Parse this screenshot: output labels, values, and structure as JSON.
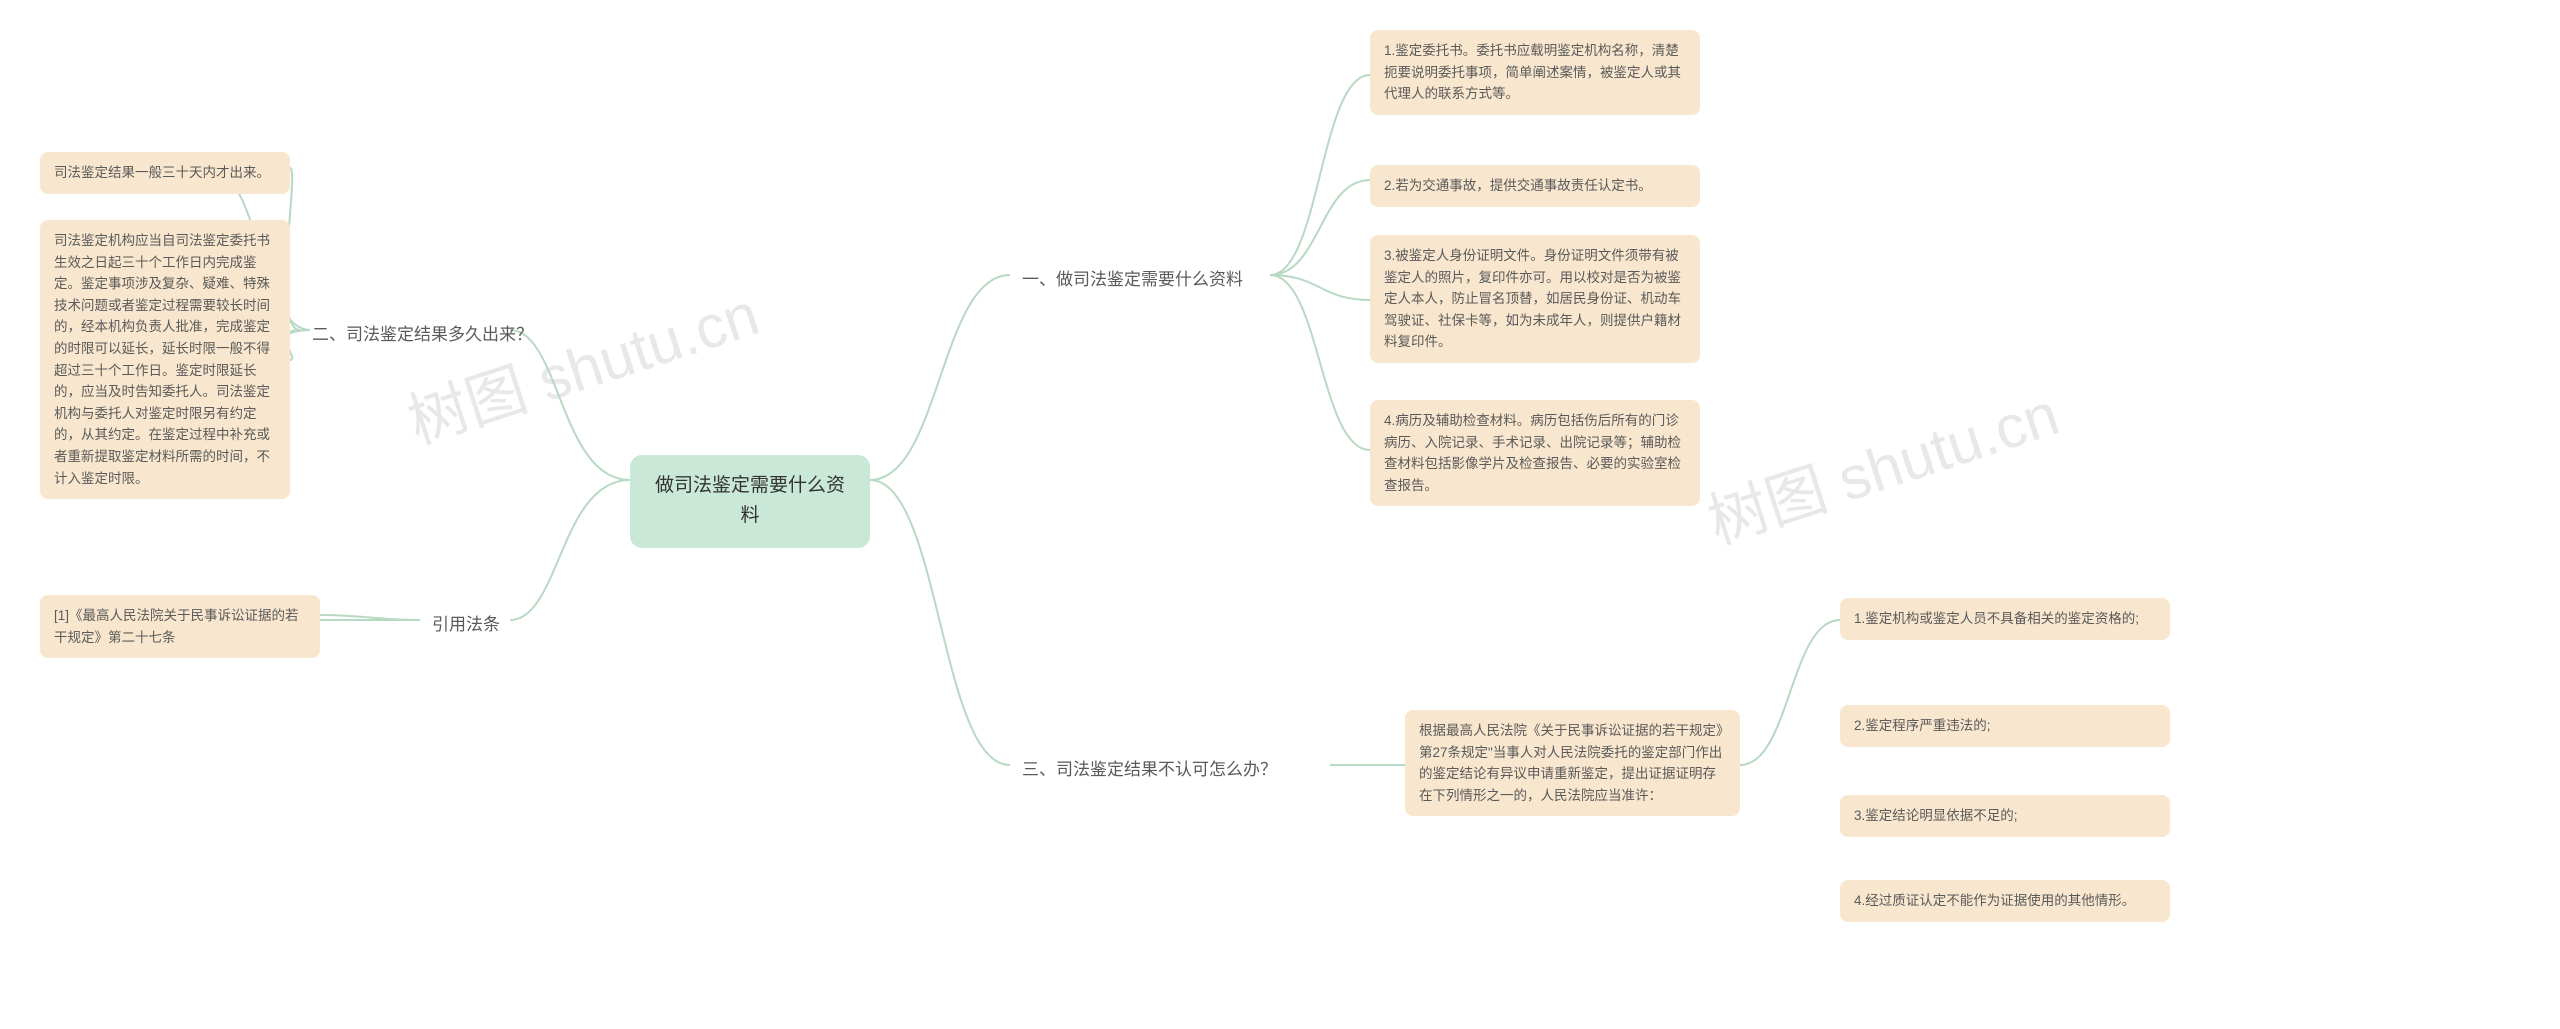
{
  "watermark": "树图 shutu.cn",
  "colors": {
    "root_bg": "#c9e8d8",
    "leaf_bg": "#f8e7ce",
    "text": "#5a5a5a",
    "connector": "#b8d9c2",
    "watermark_color": "#e8e8e8",
    "background": "#ffffff"
  },
  "root": {
    "label": "做司法鉴定需要什么资料"
  },
  "branches": {
    "materials": {
      "label": "一、做司法鉴定需要什么资料",
      "items": [
        "1.鉴定委托书。委托书应载明鉴定机构名称，清楚扼要说明委托事项，简单阐述案情，被鉴定人或其代理人的联系方式等。",
        "2.若为交通事故，提供交通事故责任认定书。",
        "3.被鉴定人身份证明文件。身份证明文件须带有被鉴定人的照片，复印件亦可。用以校对是否为被鉴定人本人，防止冒名顶替，如居民身份证、机动车驾驶证、社保卡等，如为未成年人，则提供户籍材料复印件。",
        "4.病历及辅助检查材料。病历包括伤后所有的门诊病历、入院记录、手术记录、出院记录等；辅助检查材料包括影像学片及检查报告、必要的实验室检查报告。"
      ]
    },
    "reject": {
      "label": "三、司法鉴定结果不认可怎么办？",
      "intro": "根据最高人民法院《关于民事诉讼证据的若干规定》第27条规定\"当事人对人民法院委托的鉴定部门作出的鉴定结论有异议申请重新鉴定，提出证据证明存在下列情形之一的，人民法院应当准许：",
      "items": [
        "1.鉴定机构或鉴定人员不具备相关的鉴定资格的;",
        "2.鉴定程序严重违法的;",
        "3.鉴定结论明显依据不足的;",
        "4.经过质证认定不能作为证据使用的其他情形。"
      ]
    },
    "timing": {
      "label": "二、司法鉴定结果多久出来？",
      "items": [
        "司法鉴定结果一般三十天内才出来。",
        "司法鉴定机构应当自司法鉴定委托书生效之日起三十个工作日内完成鉴定。鉴定事项涉及复杂、疑难、特殊技术问题或者鉴定过程需要较长时间的，经本机构负责人批准，完成鉴定的时限可以延长，延长时限一般不得超过三十个工作日。鉴定时限延长的，应当及时告知委托人。司法鉴定机构与委托人对鉴定时限另有约定的，从其约定。在鉴定过程中补充或者重新提取鉴定材料所需的时间，不计入鉴定时限。"
      ]
    },
    "citation": {
      "label": "引用法条",
      "items": [
        "[1]《最高人民法院关于民事诉讼证据的若干规定》第二十七条"
      ]
    }
  }
}
